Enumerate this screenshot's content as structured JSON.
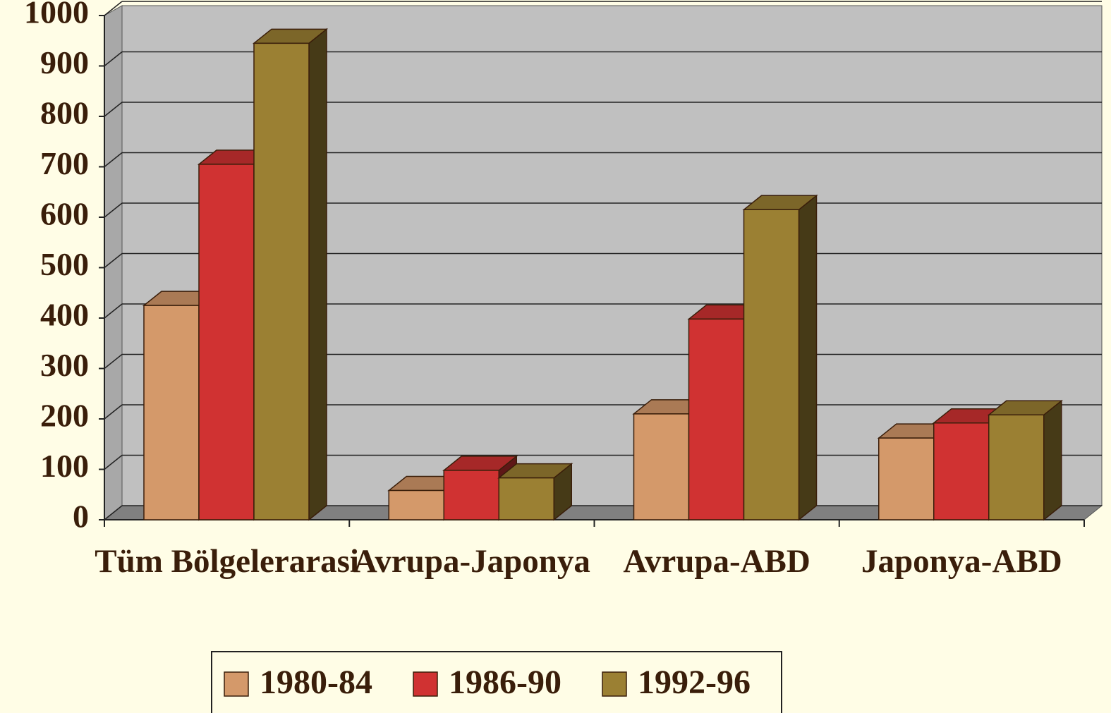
{
  "chart_data": {
    "type": "bar3d",
    "categories": [
      "Tüm Bölgelerarasi",
      "Avrupa-Japonya",
      "Avrupa-ABD",
      "Japonya-ABD"
    ],
    "series": [
      {
        "name": "1980-84",
        "color": "#d4996a",
        "values": [
          425,
          58,
          210,
          162
        ]
      },
      {
        "name": "1986-90",
        "color": "#d03232",
        "values": [
          705,
          98,
          398,
          192
        ]
      },
      {
        "name": "1992-96",
        "color": "#9b8033",
        "values": [
          945,
          83,
          615,
          208
        ]
      }
    ],
    "ylim": [
      0,
      1000
    ],
    "yticks": [
      0,
      100,
      200,
      300,
      400,
      500,
      600,
      700,
      800,
      900,
      1000
    ],
    "grid": true,
    "legend": "bottom"
  }
}
